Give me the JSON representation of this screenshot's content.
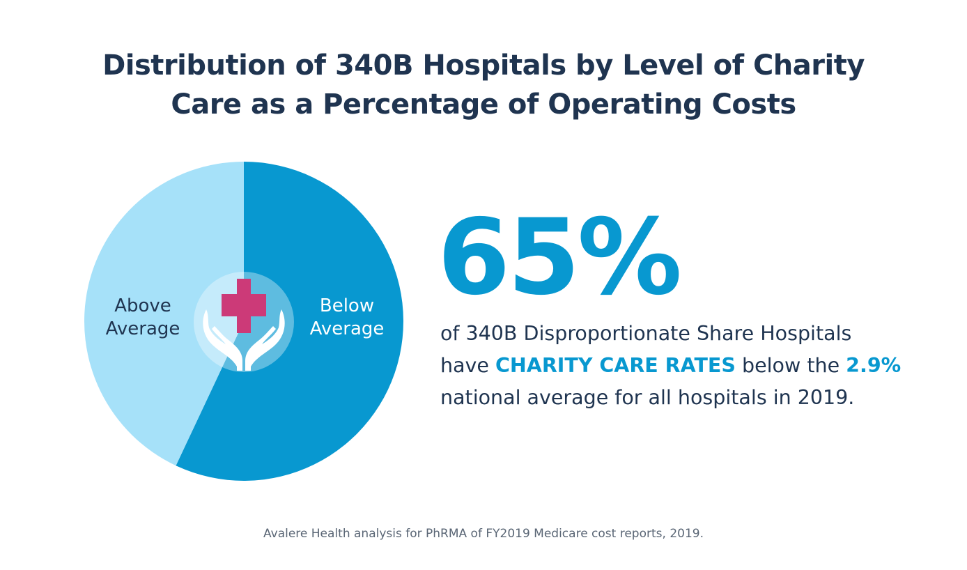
{
  "chart_data": {
    "type": "pie",
    "title": "Distribution of 340B Hospitals by Level of Charity Care as a Percentage of Operating Costs",
    "slices": [
      {
        "label": [
          "Below",
          "Average"
        ],
        "value": 57,
        "color": "#0898d0"
      },
      {
        "label": [
          "Above",
          "Average"
        ],
        "value": 43,
        "color": "#a6e1f9"
      }
    ],
    "title_lines": [
      "Distribution of 340B Hospitals by Level of Charity",
      "Care as a Percentage of Operating Costs"
    ]
  },
  "center_icon": "hands-holding-medical-cross-icon",
  "colors": {
    "accent": "#0898d0",
    "cross": "#cc3a78",
    "title": "#1f3450"
  },
  "stat": {
    "value": "65%",
    "line1": "of 340B Disproportionate Share Hospitals",
    "line2_pre": "have ",
    "line2_highlight": "CHARITY CARE RATES",
    "line2_mid": " below the ",
    "line2_value": "2.9%",
    "line3": "national average for all hospitals in 2019."
  },
  "source": "Avalere Health analysis for PhRMA of FY2019 Medicare cost reports, 2019."
}
